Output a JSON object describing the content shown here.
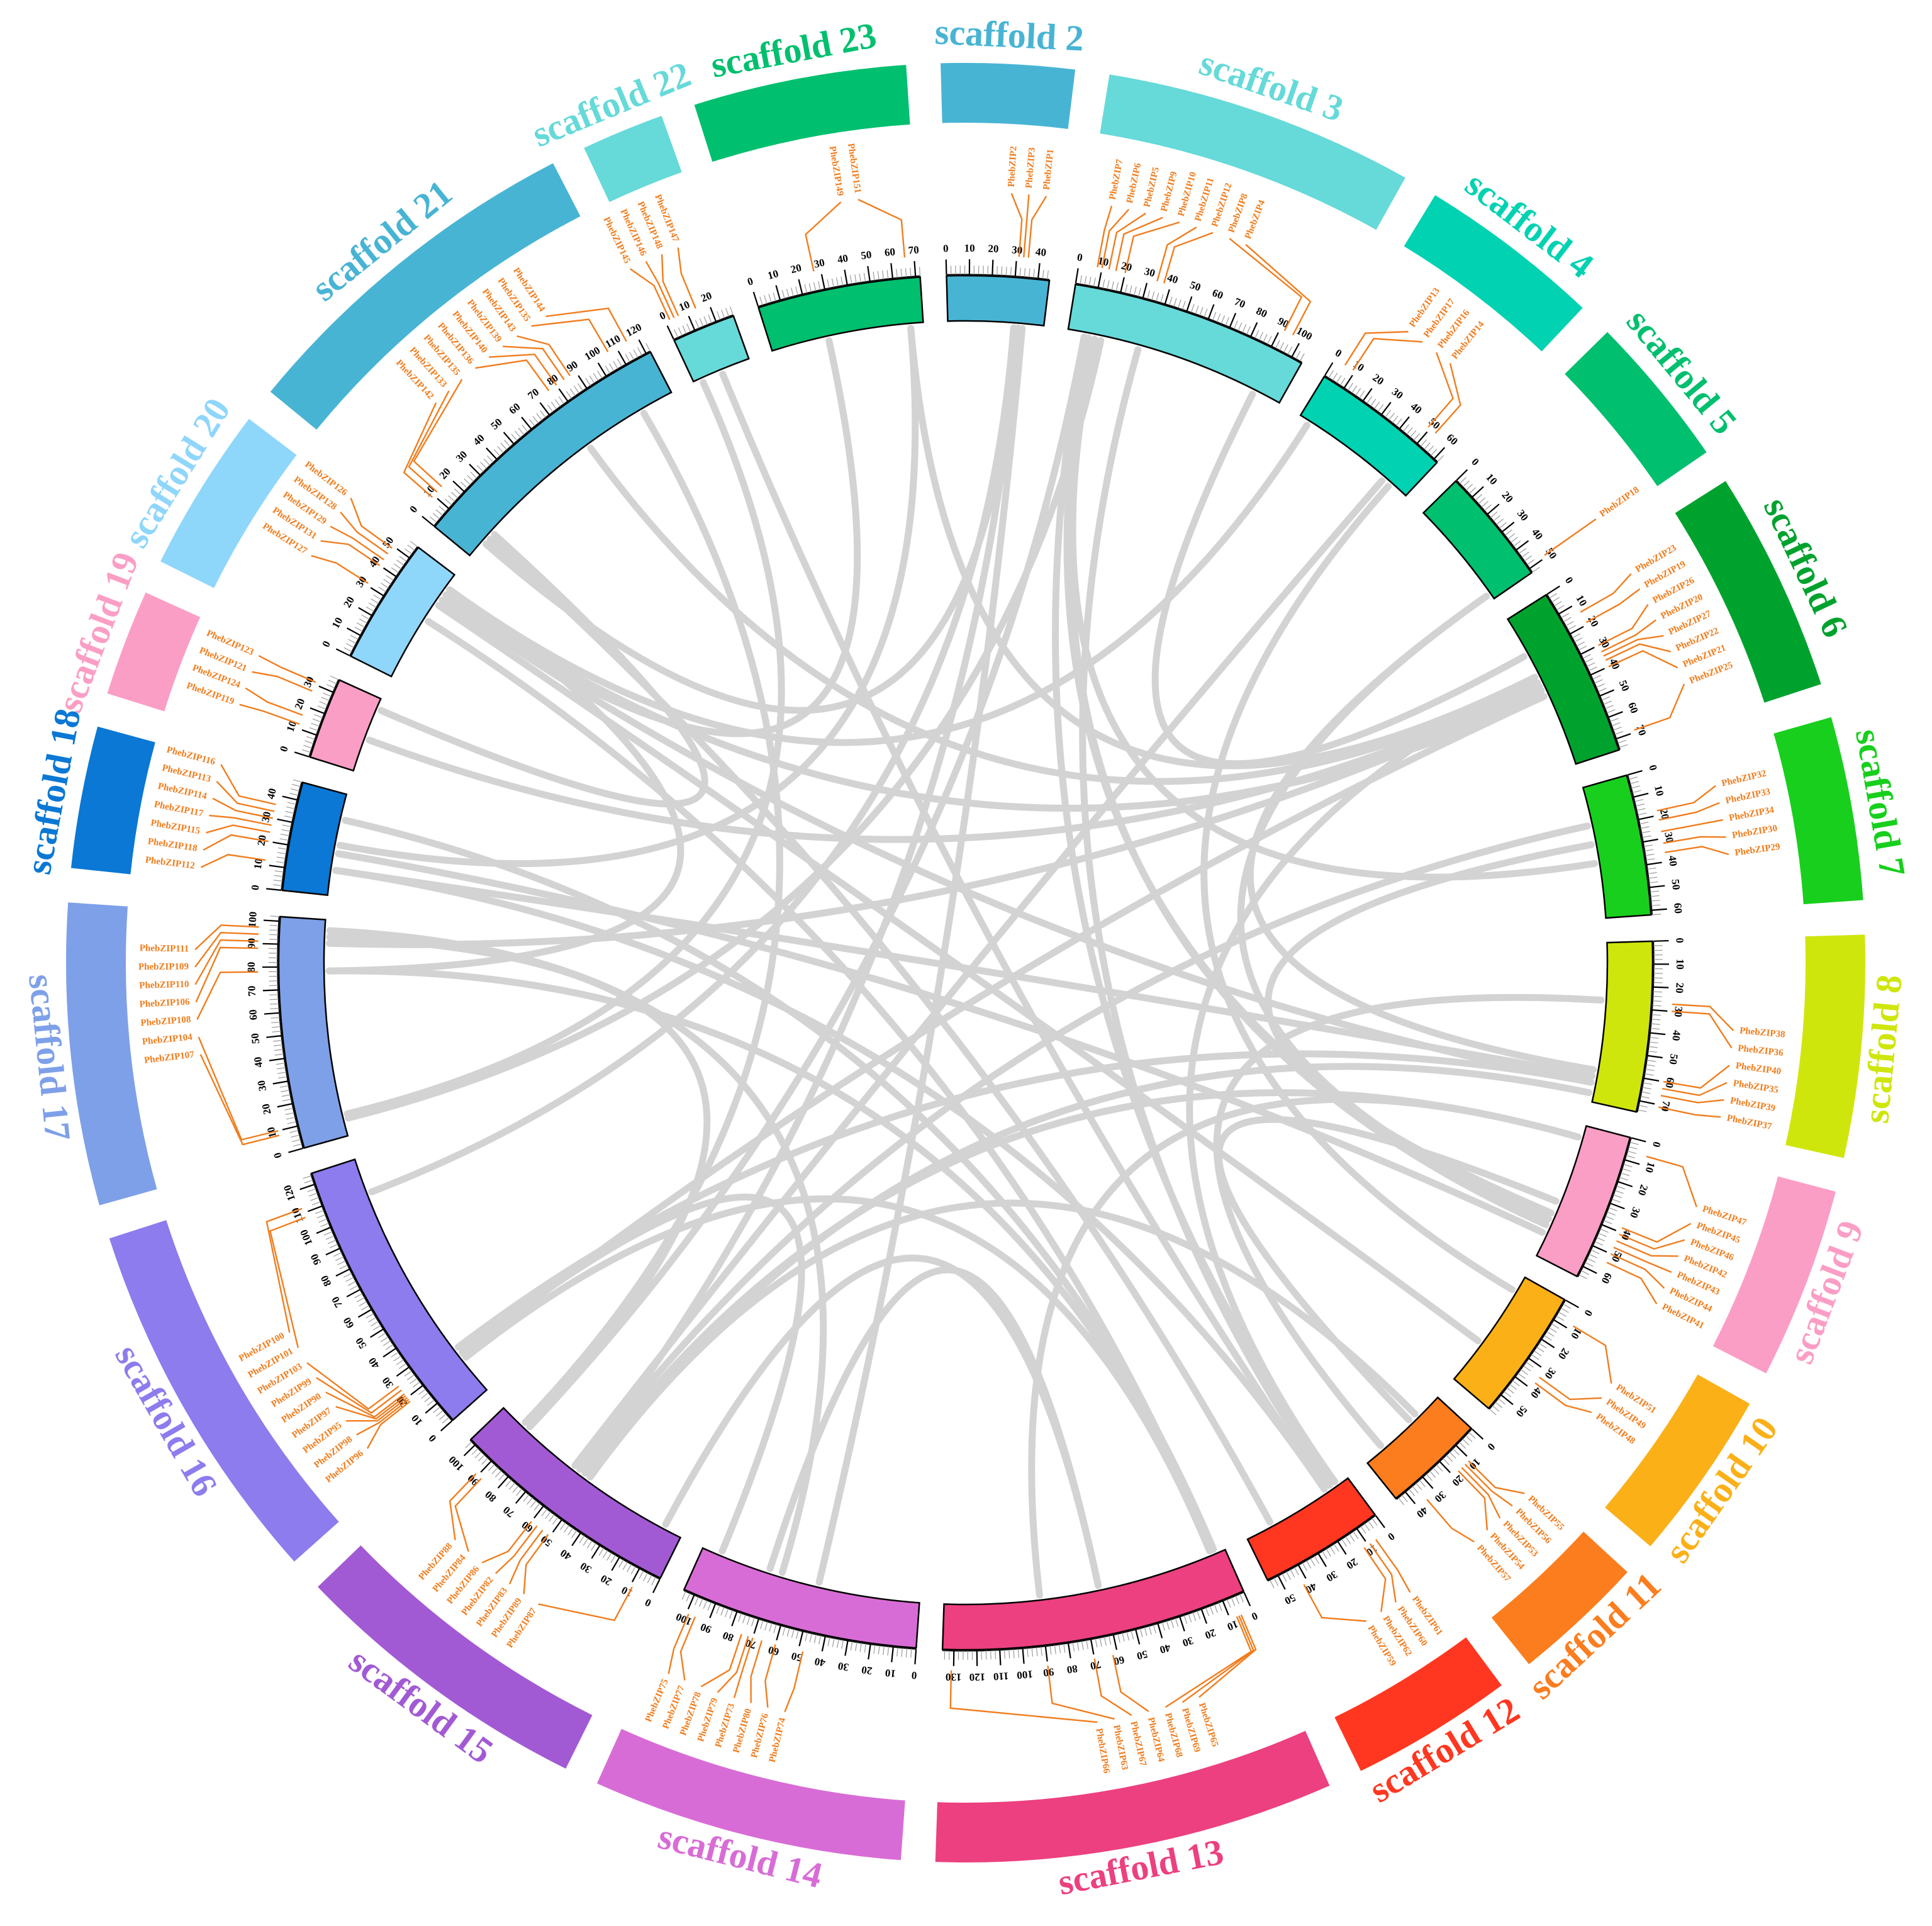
{
  "colors": {
    "gene": "#f07d1e",
    "link": "#d3d3d3",
    "tick": "#000000",
    "background": "#ffffff"
  },
  "scaffolds": [
    {
      "name": "scaffold 2",
      "color": "#48b4d4",
      "length": 45,
      "genes": [
        [
          "PhebZIP2",
          31
        ],
        [
          "PhebZIP3",
          33
        ],
        [
          "PhebZIP1",
          35
        ]
      ]
    },
    {
      "name": "scaffold 3",
      "color": "#66d9d9",
      "length": 105,
      "genes": [
        [
          "PhebZIP7",
          8
        ],
        [
          "PhebZIP6",
          10
        ],
        [
          "PhebZIP5",
          13
        ],
        [
          "PhebZIP9",
          16
        ],
        [
          "PhebZIP10",
          20
        ],
        [
          "PhebZIP11",
          34
        ],
        [
          "PhebZIP12",
          37
        ],
        [
          "PhebZIP8",
          92
        ],
        [
          "PhebZIP4",
          96
        ]
      ]
    },
    {
      "name": "scaffold 4",
      "color": "#00d2b2",
      "length": 62,
      "genes": [
        [
          "PhebZIP13",
          5
        ],
        [
          "PhebZIP17",
          9
        ],
        [
          "PhebZIP16",
          49
        ],
        [
          "PhebZIP14",
          53
        ]
      ]
    },
    {
      "name": "scaffold 5",
      "color": "#00bf6e",
      "length": 52,
      "genes": [
        [
          "PhebZIP18",
          49
        ]
      ]
    },
    {
      "name": "scaffold 6",
      "color": "#00a22e",
      "length": 75,
      "genes": [
        [
          "PhebZIP23",
          14
        ],
        [
          "PhebZIP19",
          19
        ],
        [
          "PhebZIP26",
          30
        ],
        [
          "PhebZIP20",
          33
        ],
        [
          "PhebZIP27",
          35
        ],
        [
          "PhebZIP22",
          37
        ],
        [
          "PhebZIP21",
          40
        ],
        [
          "PhebZIP25",
          69
        ]
      ]
    },
    {
      "name": "scaffold 7",
      "color": "#18cf1e",
      "length": 62,
      "genes": [
        [
          "PhebZIP32",
          18
        ],
        [
          "PhebZIP33",
          22
        ],
        [
          "PhebZIP34",
          27
        ],
        [
          "PhebZIP30",
          32
        ],
        [
          "PhebZIP29",
          36
        ]
      ]
    },
    {
      "name": "scaffold 8",
      "color": "#cfe60c",
      "length": 75,
      "genes": [
        [
          "PhebZIP38",
          27
        ],
        [
          "PhebZIP36",
          30
        ],
        [
          "PhebZIP40",
          60
        ],
        [
          "PhebZIP35",
          63
        ],
        [
          "PhebZIP39",
          66
        ],
        [
          "PhebZIP37",
          71
        ]
      ]
    },
    {
      "name": "scaffold 9",
      "color": "#fb9ec5",
      "length": 65,
      "genes": [
        [
          "PhebZIP47",
          6
        ],
        [
          "PhebZIP45",
          38
        ],
        [
          "PhebZIP46",
          41
        ],
        [
          "PhebZIP42",
          44
        ],
        [
          "PhebZIP43",
          47
        ],
        [
          "PhebZIP44",
          50
        ],
        [
          "PhebZIP41",
          54
        ]
      ]
    },
    {
      "name": "scaffold 10",
      "color": "#fbb018",
      "length": 58,
      "genes": [
        [
          "PhebZIP51",
          8
        ],
        [
          "PhebZIP49",
          34
        ],
        [
          "PhebZIP48",
          37
        ]
      ]
    },
    {
      "name": "scaffold 11",
      "color": "#fb7d1e",
      "length": 45,
      "genes": [
        [
          "PhebZIP55",
          11
        ],
        [
          "PhebZIP56",
          13
        ],
        [
          "PhebZIP53",
          15
        ],
        [
          "PhebZIP54",
          17
        ],
        [
          "PhebZIP57",
          35
        ]
      ]
    },
    {
      "name": "scaffold 12",
      "color": "#ff3720",
      "length": 55,
      "genes": [
        [
          "PhebZIP61",
          6
        ],
        [
          "PhebZIP60",
          9
        ],
        [
          "PhebZIP62",
          12
        ],
        [
          "PhebZIP59",
          42
        ]
      ]
    },
    {
      "name": "scaffold 13",
      "color": "#ec4080",
      "length": 135,
      "genes": [
        [
          "PhebZIP65",
          5
        ],
        [
          "PhebZIP69",
          6
        ],
        [
          "PhebZIP68",
          7
        ],
        [
          "PhebZIP64",
          62
        ],
        [
          "PhebZIP67",
          70
        ],
        [
          "PhebZIP63",
          90
        ],
        [
          "PhebZIP66",
          131
        ]
      ]
    },
    {
      "name": "scaffold 14",
      "color": "#d86cd6",
      "length": 105,
      "genes": [
        [
          "PhebZIP74",
          48
        ],
        [
          "PhebZIP76",
          60
        ],
        [
          "PhebZIP80",
          66
        ],
        [
          "PhebZIP73",
          70
        ],
        [
          "PhebZIP79",
          72
        ],
        [
          "PhebZIP78",
          75
        ],
        [
          "PhebZIP77",
          96
        ],
        [
          "PhebZIP75",
          99
        ]
      ]
    },
    {
      "name": "scaffold 15",
      "color": "#a25ad4",
      "length": 103,
      "genes": [
        [
          "PhebZIP87",
          9
        ],
        [
          "PhebZIP89",
          51
        ],
        [
          "PhebZIP83",
          54
        ],
        [
          "PhebZIP82",
          57
        ],
        [
          "PhebZIP86",
          60
        ],
        [
          "PhebZIP84",
          88
        ],
        [
          "PhebZIP88",
          91
        ]
      ]
    },
    {
      "name": "scaffold 16",
      "color": "#8c7ced",
      "length": 125,
      "genes": [
        [
          "PhebZIP96",
          18
        ],
        [
          "PhebZIP98",
          19
        ],
        [
          "PhebZIP95",
          20
        ],
        [
          "PhebZIP97",
          21
        ],
        [
          "PhebZIP90",
          22
        ],
        [
          "PhebZIP99",
          24
        ],
        [
          "PhebZIP103",
          26
        ],
        [
          "PhebZIP101",
          108
        ],
        [
          "PhebZIP100",
          112
        ]
      ]
    },
    {
      "name": "scaffold 17",
      "color": "#7ea0e8",
      "length": 102,
      "genes": [
        [
          "PhebZIP107",
          8
        ],
        [
          "PhebZIP104",
          10
        ],
        [
          "PhebZIP108",
          78
        ],
        [
          "PhebZIP106",
          88
        ],
        [
          "PhebZIP110",
          91
        ],
        [
          "PhebZIP109",
          94
        ],
        [
          "PhebZIP111",
          97
        ]
      ]
    },
    {
      "name": "scaffold 18",
      "color": "#0a78d4",
      "length": 48,
      "genes": [
        [
          "PhebZIP112",
          12
        ],
        [
          "PhebZIP118",
          20
        ],
        [
          "PhebZIP115",
          24
        ],
        [
          "PhebZIP117",
          27
        ],
        [
          "PhebZIP114",
          30
        ],
        [
          "PhebZIP113",
          33
        ],
        [
          "PhebZIP116",
          36
        ]
      ]
    },
    {
      "name": "scaffold 19",
      "color": "#fb9ec5",
      "length": 36,
      "genes": [
        [
          "PhebZIP119",
          12
        ],
        [
          "PhebZIP124",
          16
        ],
        [
          "PhebZIP121",
          27
        ],
        [
          "PhebZIP123",
          31
        ]
      ]
    },
    {
      "name": "scaffold 20",
      "color": "#8fd6fb",
      "length": 56,
      "genes": [
        [
          "PhebZIP127",
          31
        ],
        [
          "PhebZIP131",
          40
        ],
        [
          "PhebZIP129",
          43
        ],
        [
          "PhebZIP128",
          46
        ],
        [
          "PhebZIP126",
          49
        ]
      ]
    },
    {
      "name": "scaffold 21",
      "color": "#48b4d4",
      "length": 122,
      "genes": [
        [
          "PhebZIP142",
          9
        ],
        [
          "PhebZIP133",
          12
        ],
        [
          "PhebZIP135",
          15
        ],
        [
          "PhebZIP136",
          76
        ],
        [
          "PhebZIP140",
          80
        ],
        [
          "PhebZIP139",
          84
        ],
        [
          "PhebZIP143",
          87
        ],
        [
          "PhebZIP135",
          106
        ],
        [
          "PhebZIP144",
          115
        ]
      ]
    },
    {
      "name": "scaffold 22",
      "color": "#66d9d9",
      "length": 28,
      "genes": [
        [
          "PhebZIP145",
          2
        ],
        [
          "PhebZIP146",
          4
        ],
        [
          "PhebZIP148",
          6
        ],
        [
          "PhebZIP147",
          14
        ]
      ]
    },
    {
      "name": "scaffold 23",
      "color": "#00bf6e",
      "length": 72,
      "genes": [
        [
          "PhebZIP149",
          27
        ],
        [
          "PhebZIP151",
          66
        ]
      ]
    }
  ]
}
